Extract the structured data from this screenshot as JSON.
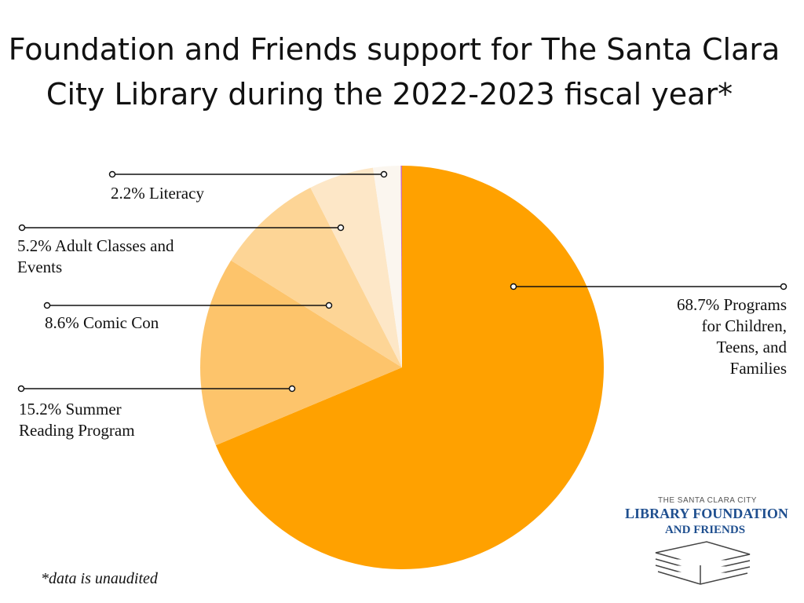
{
  "title_lines": [
    "Foundation and Friends support for The Santa Clara",
    "City Library during the 2022-2023 fiscal year*"
  ],
  "footnote": "*data is unaudited",
  "logo": {
    "line1": "THE SANTA CLARA CITY",
    "line2": "LIBRARY FOUNDATION",
    "line3": "AND FRIENDS"
  },
  "chart_data": {
    "type": "pie",
    "title": "Foundation and Friends support for The Santa Clara City Library during the 2022-2023 fiscal year*",
    "slices": [
      {
        "key": "children",
        "value": 68.7,
        "label_lines": [
          "68.7% Programs",
          "for Children,",
          "Teens, and",
          "Families"
        ],
        "color": "#ffa100"
      },
      {
        "key": "summer",
        "value": 15.2,
        "label_lines": [
          "15.2%  Summer",
          "Reading Program"
        ],
        "color": "#fdc46b"
      },
      {
        "key": "comic",
        "value": 8.6,
        "label_lines": [
          "8.6% Comic Con"
        ],
        "color": "#fdd596"
      },
      {
        "key": "adult",
        "value": 5.2,
        "label_lines": [
          "5.2% Adult Classes and",
          "Events"
        ],
        "color": "#fde7c7"
      },
      {
        "key": "literacy",
        "value": 2.2,
        "label_lines": [
          "2.2% Literacy"
        ],
        "color": "#fbf6ef"
      },
      {
        "key": "other",
        "value": 0.1,
        "label_lines": [],
        "color": "#cf6fb0"
      }
    ]
  }
}
